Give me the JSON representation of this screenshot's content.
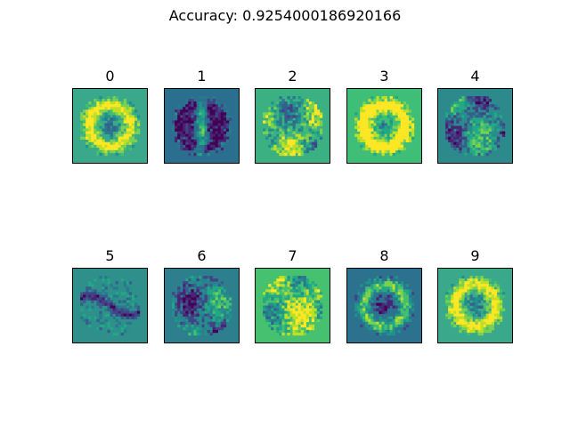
{
  "figure": {
    "suptitle": "Accuracy: 0.9254000186920166"
  },
  "chart_data": {
    "type": "heatmap",
    "title": "Accuracy: 0.9254000186920166",
    "colormap": "viridis",
    "grid": false,
    "axes_ticks": false,
    "layout": "2 rows x 5 columns",
    "panels": [
      {
        "label": "0",
        "background": "#3aa88a",
        "pattern": "ring"
      },
      {
        "label": "1",
        "background": "#2b6f8e",
        "pattern": "vertical"
      },
      {
        "label": "2",
        "background": "#3bb082",
        "pattern": "blob"
      },
      {
        "label": "3",
        "background": "#3fbe77",
        "pattern": "ring"
      },
      {
        "label": "4",
        "background": "#2d8a8c",
        "pattern": "blob"
      },
      {
        "label": "5",
        "background": "#2f8f8a",
        "pattern": "curve"
      },
      {
        "label": "6",
        "background": "#2e7f8e",
        "pattern": "blob"
      },
      {
        "label": "7",
        "background": "#45c16f",
        "pattern": "blob"
      },
      {
        "label": "8",
        "background": "#2c728e",
        "pattern": "ring"
      },
      {
        "label": "9",
        "background": "#3aa88a",
        "pattern": "ring"
      }
    ]
  }
}
